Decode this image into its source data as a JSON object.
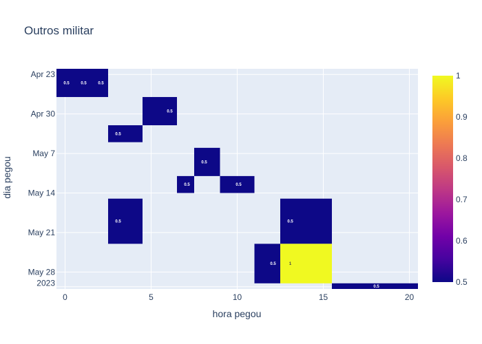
{
  "chart_data": {
    "type": "heatmap",
    "title": "Outros militar",
    "xlabel": "hora pegou",
    "ylabel": "dia pegou",
    "xlim": [
      -0.5,
      20.5
    ],
    "x_ticks": [
      0,
      5,
      10,
      15,
      20
    ],
    "y_ticks": [
      {
        "label": "Apr 23",
        "value": "2023-04-23"
      },
      {
        "label": "Apr 30",
        "value": "2023-04-30"
      },
      {
        "label": "May 7",
        "value": "2023-05-07"
      },
      {
        "label": "May 14",
        "value": "2023-05-14"
      },
      {
        "label": "May 21",
        "value": "2023-05-21"
      },
      {
        "label": "May 28",
        "sublabel": "2023",
        "value": "2023-05-28"
      }
    ],
    "cells": [
      {
        "x0": -0.5,
        "x1": 2.5,
        "y0": "2023-04-22",
        "y1": "2023-04-27",
        "value": 0.5,
        "labels": [
          {
            "x": 0,
            "text": "0.5"
          },
          {
            "x": 1,
            "text": "0.5"
          },
          {
            "x": 2,
            "text": "0.5"
          }
        ]
      },
      {
        "x0": 4.5,
        "x1": 6.5,
        "y0": "2023-04-27",
        "y1": "2023-05-02",
        "value": 0.5,
        "labels": [
          {
            "x": 6,
            "text": "0.5"
          }
        ]
      },
      {
        "x0": 2.5,
        "x1": 4.5,
        "y0": "2023-05-02",
        "y1": "2023-05-05",
        "value": 0.5,
        "labels": [
          {
            "x": 3,
            "text": "0.5"
          }
        ]
      },
      {
        "x0": 7.5,
        "x1": 9,
        "y0": "2023-05-06",
        "y1": "2023-05-11",
        "value": 0.5,
        "labels": [
          {
            "x": 8,
            "text": "0.5"
          }
        ]
      },
      {
        "x0": 6.5,
        "x1": 7.5,
        "y0": "2023-05-11",
        "y1": "2023-05-14",
        "value": 0.5,
        "labels": [
          {
            "x": 7,
            "text": "0.5"
          }
        ]
      },
      {
        "x0": 9,
        "x1": 11,
        "y0": "2023-05-11",
        "y1": "2023-05-14",
        "value": 0.5,
        "labels": [
          {
            "x": 10,
            "text": "0.5"
          }
        ]
      },
      {
        "x0": 2.5,
        "x1": 4.5,
        "y0": "2023-05-15",
        "y1": "2023-05-23",
        "value": 0.5,
        "labels": [
          {
            "x": 3,
            "text": "0.5"
          }
        ]
      },
      {
        "x0": 12.5,
        "x1": 15.5,
        "y0": "2023-05-15",
        "y1": "2023-05-23",
        "value": 0.5,
        "labels": [
          {
            "x": 13,
            "text": "0.5"
          }
        ]
      },
      {
        "x0": 11,
        "x1": 12.5,
        "y0": "2023-05-23",
        "y1": "2023-05-30",
        "value": 0.5,
        "labels": [
          {
            "x": 12,
            "text": "0.5"
          }
        ]
      },
      {
        "x0": 12.5,
        "x1": 15.5,
        "y0": "2023-05-23",
        "y1": "2023-05-30",
        "value": 1,
        "labels": [
          {
            "x": 13,
            "text": "1"
          }
        ]
      },
      {
        "x0": 15.5,
        "x1": 20.5,
        "y0": "2023-05-30",
        "y1": "2023-05-31",
        "value": 0.5,
        "labels": [
          {
            "x": 18,
            "text": "0.5"
          }
        ]
      }
    ],
    "colorbar": {
      "min": 0.5,
      "max": 1,
      "ticks": [
        0.5,
        0.6,
        0.7,
        0.8,
        0.9,
        1
      ],
      "tick_labels": [
        "0.5",
        "0.6",
        "0.7",
        "0.8",
        "0.9",
        "1"
      ],
      "colorscale": [
        "#0d0887",
        "#46039f",
        "#7201a8",
        "#9c179e",
        "#bd3786",
        "#d8576b",
        "#ed7953",
        "#fb9f3a",
        "#fdca26",
        "#f0f921"
      ]
    },
    "grid": true,
    "plot_bgcolor": "#e5ecf6"
  }
}
